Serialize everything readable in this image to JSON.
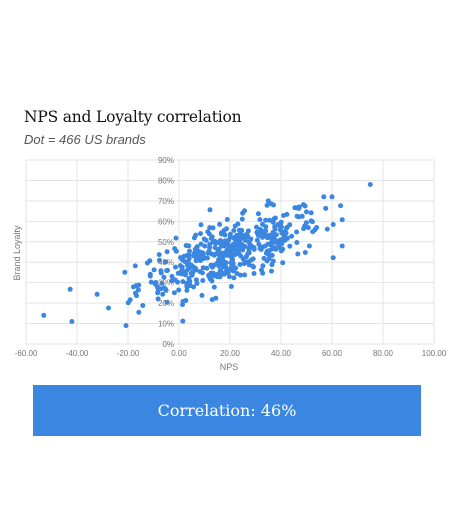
{
  "chart_data": {
    "type": "scatter",
    "title": "NPS and Loyalty correlation",
    "subtitle": "Dot = 466 US brands",
    "xlabel": "NPS",
    "ylabel": "Brand Loyalty",
    "xlim": [
      -60,
      100
    ],
    "ylim": [
      0,
      90
    ],
    "x_ticks": [
      "-60.00",
      "-40.00",
      "-20.00",
      "0.00",
      "20.00",
      "40.00",
      "60.00",
      "80.00",
      "100.00"
    ],
    "y_ticks": [
      "0%",
      "10%",
      "20%",
      "30%",
      "40%",
      "50%",
      "60%",
      "70%",
      "80%",
      "90%"
    ],
    "grid": true,
    "point_color": "#3a86e0",
    "cluster_model": {
      "count": 466,
      "center_x": 20,
      "spread_x": 18,
      "slope": 0.42,
      "intercept": 36,
      "noise": 7.5,
      "min_x": -45,
      "max_x": 64,
      "outliers": [
        [
          -53,
          14
        ],
        [
          -42,
          11
        ],
        [
          75,
          78
        ],
        [
          60,
          72
        ],
        [
          35,
          70
        ]
      ]
    }
  },
  "banner": {
    "text": "Correlation: 46%",
    "color": "#3a86e0"
  }
}
